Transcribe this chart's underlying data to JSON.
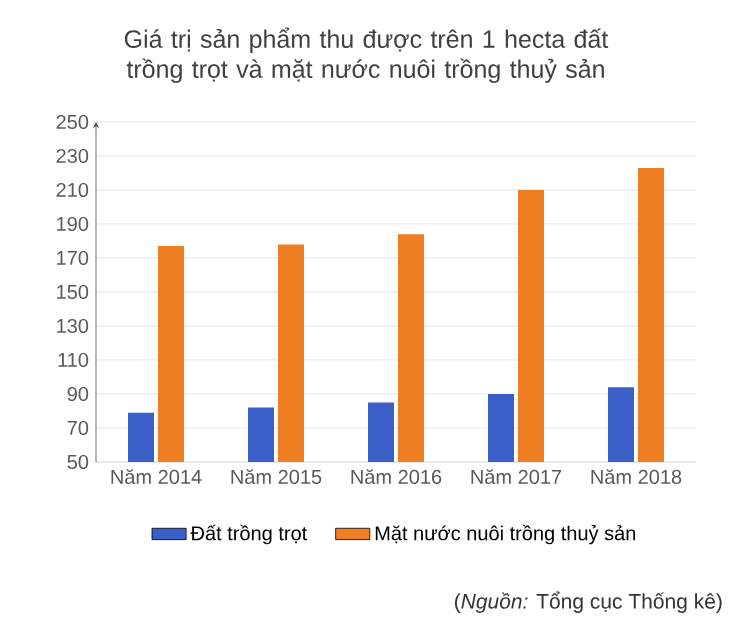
{
  "chart_data": {
    "type": "bar",
    "title": "Giá trị sản phẩm thu được trên 1 hecta đất trồng trọt và mặt nước nuôi trồng thuỷ sản",
    "categories": [
      "Năm 2014",
      "Năm 2015",
      "Năm 2016",
      "Năm 2017",
      "Năm 2018"
    ],
    "series": [
      {
        "name": "Đất trồng trọt",
        "color": "#3a5fc8",
        "values": [
          79,
          82,
          85,
          90,
          94
        ]
      },
      {
        "name": "Mặt nước nuôi trồng thuỷ sản",
        "color": "#ef7d22",
        "values": [
          177,
          178,
          184,
          210,
          223
        ]
      }
    ],
    "ylim": [
      50,
      250
    ],
    "yticks": [
      50,
      70,
      90,
      110,
      130,
      150,
      170,
      190,
      210,
      230,
      250
    ],
    "grid": "y",
    "legend": "bottom",
    "annotations": [
      "(*Nguồn:* Tổng cục Thống kê)"
    ]
  }
}
